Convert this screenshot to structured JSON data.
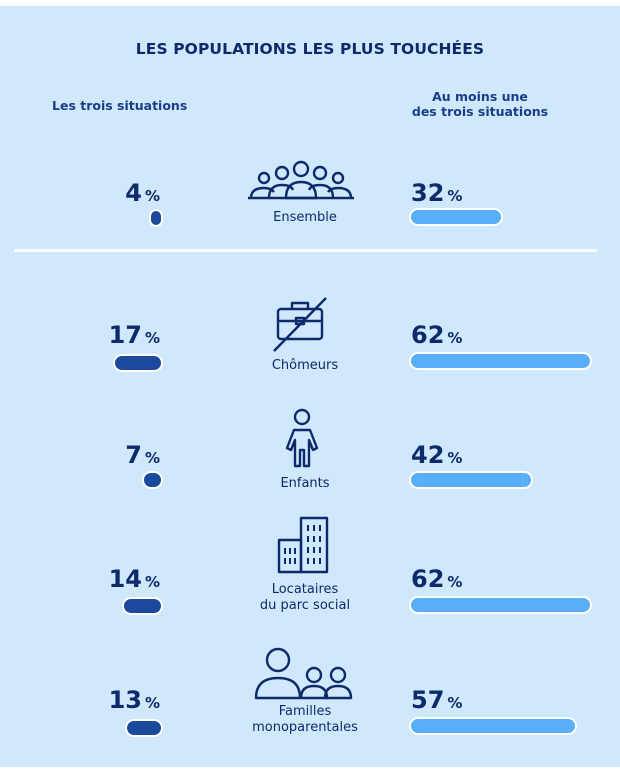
{
  "title": "LES POPULATIONS LES PLUS TOUCHÉES",
  "columns": {
    "left": "Les trois situations",
    "right_line1": "Au moins une",
    "right_line2": "des trois situations"
  },
  "colors": {
    "dark_bar": "#1b4a9c",
    "light_bar": "#58aef7",
    "background": "#cfe8fb",
    "text": "#0d2b6b"
  },
  "chart_data": {
    "type": "bar",
    "unit": "%",
    "categories": [
      "Ensemble",
      "Chômeurs",
      "Enfants",
      "Locataires du parc social",
      "Familles monoparentales"
    ],
    "series": [
      {
        "name": "Les trois situations",
        "values": [
          4,
          17,
          7,
          14,
          13
        ]
      },
      {
        "name": "Au moins une des trois situations",
        "values": [
          32,
          62,
          42,
          62,
          57
        ]
      }
    ]
  },
  "rows": [
    {
      "icon": "group-icon",
      "label1": "Ensemble",
      "label2": "",
      "left": "4",
      "right": "32",
      "pct_sign": "%"
    },
    {
      "icon": "briefcase-crossed-icon",
      "label1": "Chômeurs",
      "label2": "",
      "left": "17",
      "right": "62",
      "pct_sign": "%"
    },
    {
      "icon": "child-icon",
      "label1": "Enfants",
      "label2": "",
      "left": "7",
      "right": "42",
      "pct_sign": "%"
    },
    {
      "icon": "buildings-icon",
      "label1": "Locataires",
      "label2": "du parc social",
      "left": "14",
      "right": "62",
      "pct_sign": "%"
    },
    {
      "icon": "family-icon",
      "label1": "Familles",
      "label2": "monoparentales",
      "left": "13",
      "right": "57",
      "pct_sign": "%"
    }
  ]
}
